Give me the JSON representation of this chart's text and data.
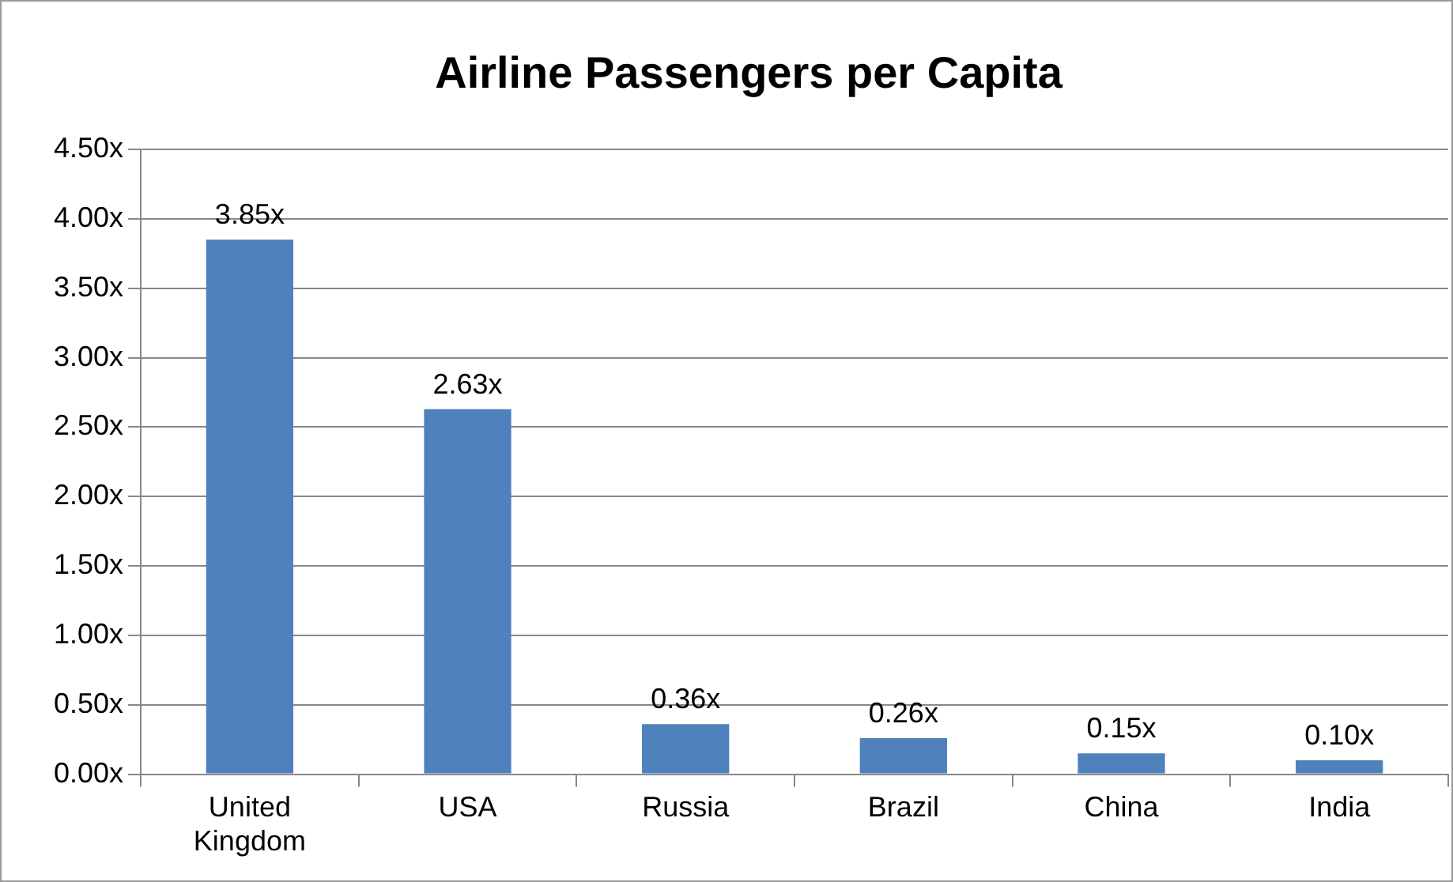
{
  "chart_data": {
    "type": "bar",
    "title": "Airline Passengers per Capita",
    "categories": [
      "United Kingdom",
      "USA",
      "Russia",
      "Brazil",
      "China",
      "India"
    ],
    "values": [
      3.85,
      2.63,
      0.36,
      0.26,
      0.15,
      0.1
    ],
    "value_labels": [
      "3.85x",
      "2.63x",
      "0.36x",
      "0.26x",
      "0.15x",
      "0.10x"
    ],
    "color": "#4f81bd",
    "ylim": [
      0,
      4.5
    ],
    "yticks": [
      {
        "value": 0,
        "label": "0.00x"
      },
      {
        "value": 0.5,
        "label": "0.50x"
      },
      {
        "value": 1,
        "label": "1.00x"
      },
      {
        "value": 1.5,
        "label": "1.50x"
      },
      {
        "value": 2,
        "label": "2.00x"
      },
      {
        "value": 2.5,
        "label": "2.50x"
      },
      {
        "value": 3,
        "label": "3.00x"
      },
      {
        "value": 3.5,
        "label": "3.50x"
      },
      {
        "value": 4,
        "label": "4.00x"
      },
      {
        "value": 4.5,
        "label": "4.50x"
      }
    ],
    "grid": "y",
    "legend": false
  }
}
